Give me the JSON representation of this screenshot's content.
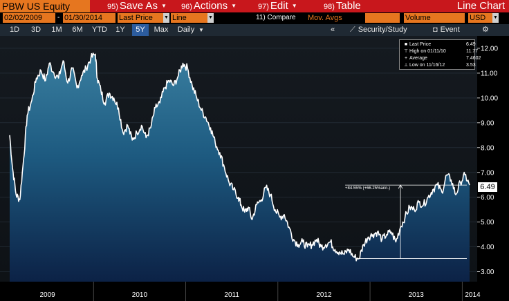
{
  "menubar": {
    "ticker": "PBW US Equity",
    "menus": [
      {
        "num": "95)",
        "label": "Save As"
      },
      {
        "num": "96)",
        "label": "Actions"
      },
      {
        "num": "97)",
        "label": "Edit"
      },
      {
        "num": "98)",
        "label": "Table"
      }
    ],
    "title": "Line Chart"
  },
  "fields": {
    "start_date": "02/02/2009",
    "end_date": "01/30/2014",
    "field": "Last Price",
    "chart_style": "Line",
    "compare": "11) Compare",
    "mov_avgs": "Mov. Avgs",
    "lower_chart": "Volume",
    "currency": "USD"
  },
  "periods": [
    "1D",
    "3D",
    "1M",
    "6M",
    "YTD",
    "1Y",
    "5Y",
    "Max"
  ],
  "active_period": "5Y",
  "frequency": "Daily",
  "toolbar": {
    "collapse": "«",
    "security_study": "Security/Study",
    "event": "Event",
    "settings": "⚙"
  },
  "legend": {
    "rows": [
      {
        "label": "Last Price",
        "value": "6.49"
      },
      {
        "label": "High on 01/11/10",
        "value": "11.77"
      },
      {
        "label": "Average",
        "value": "7.4602"
      },
      {
        "label": "Low on 11/16/12",
        "value": "3.53"
      }
    ]
  },
  "last_price_tag": "6.49",
  "colors": {
    "menubar": "#c8171c",
    "orange": "#e6761f",
    "line": "#ffffff",
    "active_tab": "#2c5c9e"
  },
  "chart_data": {
    "type": "area",
    "y_ticks": [
      "12.00",
      "11.00",
      "10.00",
      "9.00",
      "8.00",
      "7.00",
      "6.00",
      "5.00",
      "4.00",
      "3.00"
    ],
    "ylim": [
      2.6,
      12.5
    ],
    "x_ticks": [
      "2009",
      "2010",
      "2011",
      "2012",
      "2013",
      "2014"
    ],
    "annotation": "+84.55% (+66.25%ann.)",
    "low_point": {
      "x": 2012.88,
      "y": 3.53
    },
    "last_point": {
      "x": 2014.08,
      "y": 6.49
    },
    "series": [
      {
        "x": [
          2009.09,
          2009.12,
          2009.16,
          2009.2,
          2009.24,
          2009.28,
          2009.33,
          2009.38,
          2009.43,
          2009.48,
          2009.52,
          2009.57,
          2009.62,
          2009.67,
          2009.72,
          2009.77,
          2009.82,
          2009.87,
          2009.92,
          2009.97,
          2010.02,
          2010.04,
          2010.08,
          2010.12,
          2010.17,
          2010.22,
          2010.27,
          2010.32,
          2010.37,
          2010.42,
          2010.47,
          2010.52,
          2010.57,
          2010.62,
          2010.67,
          2010.72,
          2010.77,
          2010.82,
          2010.87,
          2010.92,
          2010.97,
          2011.02,
          2011.07,
          2011.12,
          2011.17,
          2011.22,
          2011.27,
          2011.32,
          2011.37,
          2011.42,
          2011.47,
          2011.52,
          2011.57,
          2011.6,
          2011.64,
          2011.68,
          2011.72,
          2011.77,
          2011.82,
          2011.87,
          2011.92,
          2011.97,
          2012.02,
          2012.07,
          2012.12,
          2012.17,
          2012.22,
          2012.27,
          2012.32,
          2012.37,
          2012.42,
          2012.47,
          2012.52,
          2012.57,
          2012.62,
          2012.67,
          2012.72,
          2012.77,
          2012.82,
          2012.88,
          2012.93,
          2012.98,
          2013.03,
          2013.08,
          2013.13,
          2013.18,
          2013.23,
          2013.28,
          2013.33,
          2013.38,
          2013.43,
          2013.48,
          2013.53,
          2013.58,
          2013.63,
          2013.68,
          2013.73,
          2013.78,
          2013.83,
          2013.88,
          2013.93,
          2013.98,
          2014.03,
          2014.08
        ],
        "y": [
          8.5,
          7.2,
          6.1,
          5.9,
          7.5,
          9.3,
          9.9,
          10.8,
          11.1,
          10.7,
          11.4,
          11.0,
          10.8,
          11.5,
          10.6,
          11.2,
          10.4,
          10.9,
          11.2,
          11.6,
          11.77,
          10.8,
          10.3,
          9.8,
          10.2,
          10.0,
          9.6,
          8.6,
          8.9,
          8.3,
          8.6,
          8.9,
          8.4,
          8.8,
          9.6,
          9.8,
          10.4,
          10.7,
          10.5,
          10.9,
          11.4,
          11.2,
          10.5,
          10.0,
          9.5,
          9.2,
          8.8,
          8.2,
          7.8,
          7.2,
          6.6,
          6.3,
          6.0,
          5.7,
          5.4,
          5.6,
          5.1,
          5.7,
          5.9,
          6.4,
          6.1,
          5.5,
          5.2,
          5.3,
          4.8,
          4.3,
          4.1,
          4.2,
          4.0,
          4.1,
          4.3,
          4.0,
          4.1,
          4.2,
          3.9,
          3.8,
          3.7,
          3.9,
          3.6,
          3.53,
          4.1,
          4.4,
          4.5,
          4.6,
          4.3,
          4.5,
          4.6,
          4.2,
          4.8,
          5.2,
          5.6,
          5.5,
          5.8,
          5.7,
          6.0,
          6.3,
          6.5,
          6.2,
          6.9,
          6.7,
          6.1,
          6.6,
          6.9,
          6.49
        ]
      }
    ]
  }
}
